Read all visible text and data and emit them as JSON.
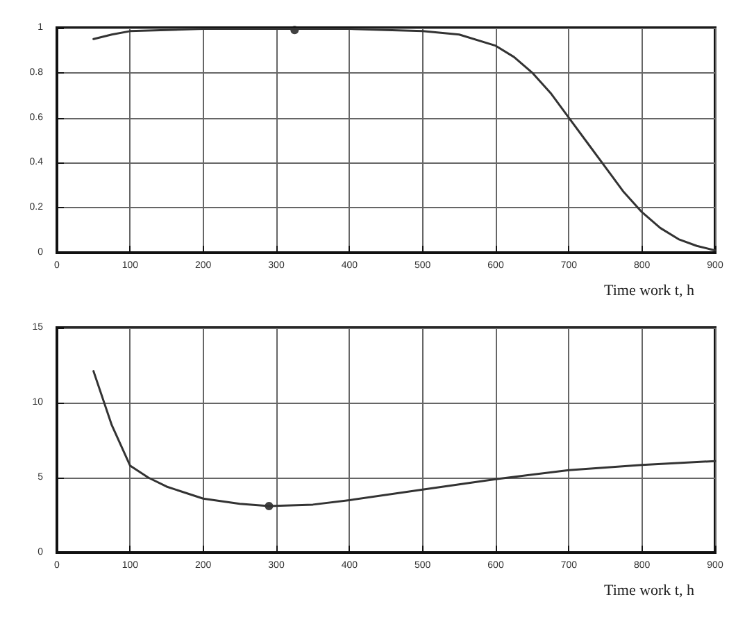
{
  "chart_data": [
    {
      "type": "line",
      "xlabel": "Time work t, h",
      "xlim": [
        0,
        900
      ],
      "xticks": [
        0,
        100,
        200,
        300,
        400,
        500,
        600,
        700,
        800,
        900
      ],
      "ylim": [
        0,
        1
      ],
      "yticks": [
        0,
        0.2,
        0.4,
        0.6,
        0.8,
        1
      ],
      "grid": true,
      "marker": "none",
      "series": [
        {
          "color": "#333333",
          "x": [
            50,
            75,
            100,
            150,
            200,
            300,
            400,
            450,
            500,
            550,
            600,
            625,
            650,
            675,
            700,
            725,
            750,
            775,
            800,
            825,
            850,
            875,
            900
          ],
          "values": [
            0.95,
            0.97,
            0.985,
            0.99,
            0.995,
            0.995,
            0.995,
            0.99,
            0.985,
            0.97,
            0.92,
            0.87,
            0.8,
            0.71,
            0.6,
            0.49,
            0.38,
            0.27,
            0.18,
            0.11,
            0.06,
            0.03,
            0.01
          ]
        },
        {
          "type": "scatter",
          "marker": "circle",
          "color": "#111111",
          "x": [
            325
          ],
          "values": [
            0.99
          ]
        }
      ]
    },
    {
      "type": "line",
      "xlabel": "Time work t, h",
      "xlim": [
        0,
        900
      ],
      "xticks": [
        0,
        100,
        200,
        300,
        400,
        500,
        600,
        700,
        800,
        900
      ],
      "ylim": [
        0,
        15
      ],
      "yticks": [
        0,
        5,
        10,
        15
      ],
      "grid": true,
      "marker": "none",
      "series": [
        {
          "color": "#333333",
          "x": [
            50,
            75,
            100,
            125,
            150,
            200,
            250,
            290,
            350,
            400,
            500,
            600,
            700,
            800,
            900
          ],
          "values": [
            12.1,
            8.5,
            5.8,
            5.0,
            4.4,
            3.6,
            3.25,
            3.1,
            3.2,
            3.5,
            4.2,
            4.9,
            5.5,
            5.85,
            6.1
          ]
        },
        {
          "type": "scatter",
          "marker": "circle",
          "color": "#111111",
          "x": [
            290
          ],
          "values": [
            3.1
          ]
        }
      ]
    }
  ]
}
